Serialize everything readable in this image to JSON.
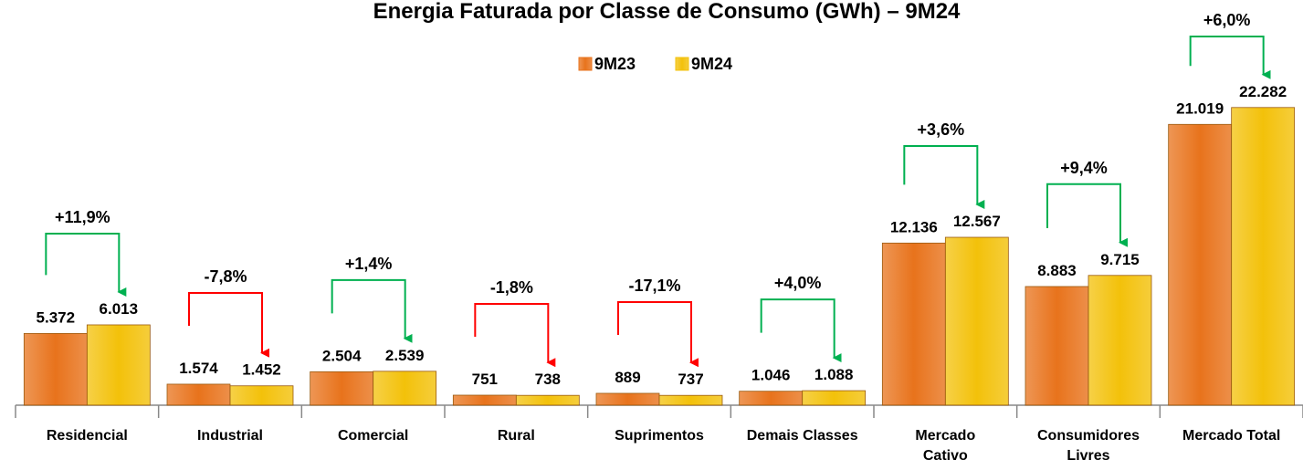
{
  "chart_data": {
    "type": "bar",
    "title": "Energia Faturada por Classe de Consumo (GWh) – 9M24",
    "categories": [
      "Residencial",
      "Industrial",
      "Comercial",
      "Rural",
      "Suprimentos",
      "Demais Classes",
      "Mercado\nCativo",
      "Consumidores\nLivres",
      "Mercado Total"
    ],
    "series": [
      {
        "name": "9M23",
        "color": "#e8731c",
        "values": [
          5372,
          1574,
          2504,
          751,
          889,
          1046,
          12136,
          8883,
          21019
        ],
        "value_labels": [
          "5.372",
          "1.574",
          "2.504",
          "751",
          "889",
          "1.046",
          "12.136",
          "8.883",
          "21.019"
        ]
      },
      {
        "name": "9M24",
        "color": "#f3c10a",
        "values": [
          6013,
          1452,
          2539,
          738,
          737,
          1088,
          12567,
          9715,
          22282
        ],
        "value_labels": [
          "6.013",
          "1.452",
          "2.539",
          "738",
          "737",
          "1.088",
          "12.567",
          "9.715",
          "22.282"
        ]
      }
    ],
    "changes": [
      "+11,9%",
      "-7,8%",
      "+1,4%",
      "-1,8%",
      "-17,1%",
      "+4,0%",
      "+3,6%",
      "+9,4%",
      "+6,0%"
    ],
    "change_colors": [
      "#00b050",
      "#ff0000",
      "#00b050",
      "#ff0000",
      "#ff0000",
      "#00b050",
      "#00b050",
      "#00b050",
      "#00b050"
    ],
    "ylim": [
      0,
      25000
    ],
    "legend": "top"
  }
}
